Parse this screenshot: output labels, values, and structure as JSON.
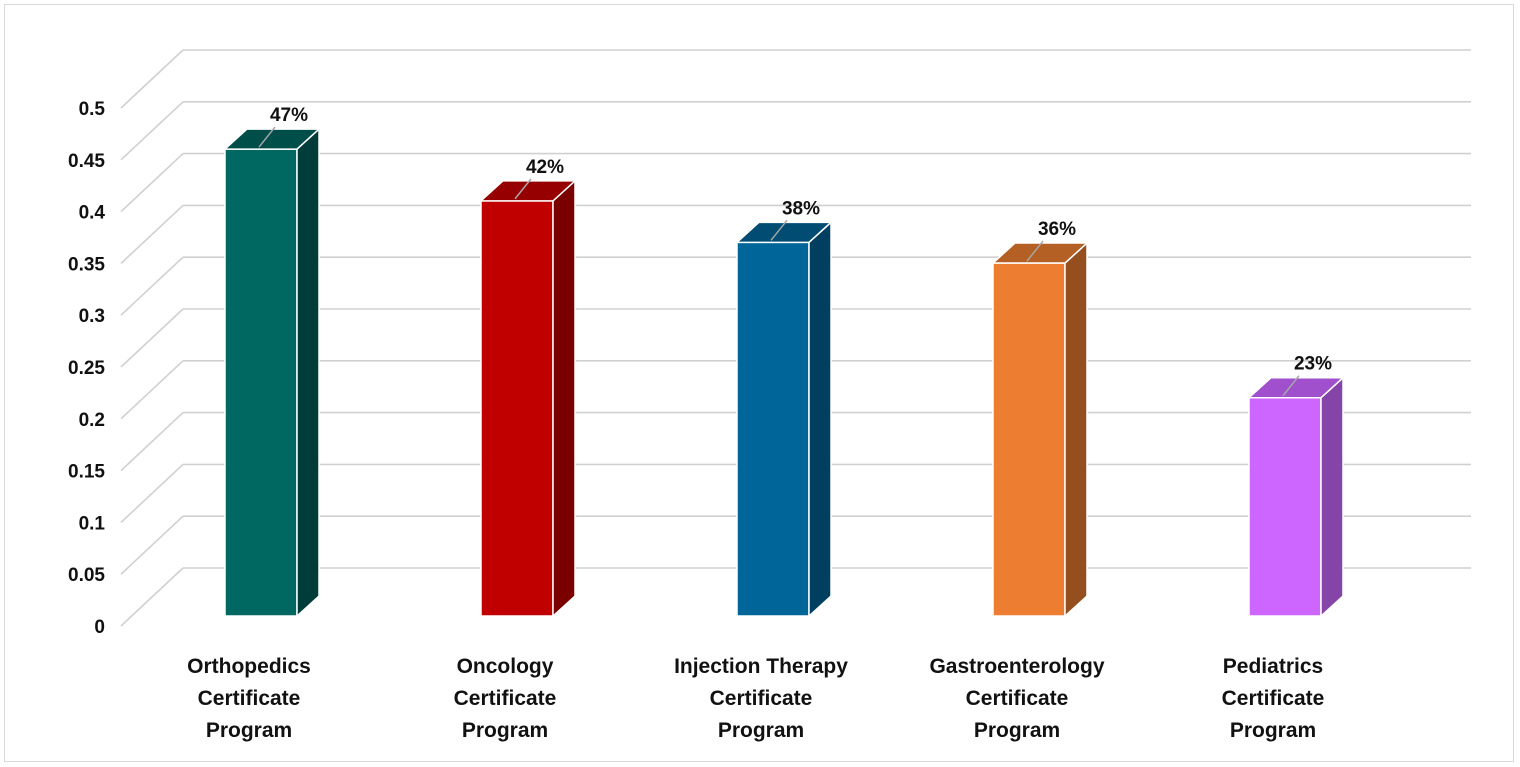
{
  "chart_data": {
    "type": "bar",
    "style": "3d-column",
    "categories": [
      [
        "Orthopedics",
        "Certificate",
        "Program"
      ],
      [
        "Oncology",
        "Certificate",
        "Program"
      ],
      [
        "Injection Therapy",
        "Certificate",
        "Program"
      ],
      [
        "Gastroenterology",
        "Certificate",
        "Program"
      ],
      [
        "Pediatrics",
        "Certificate",
        "Program"
      ]
    ],
    "values": [
      0.47,
      0.42,
      0.38,
      0.36,
      0.23
    ],
    "data_labels": [
      "47%",
      "42%",
      "38%",
      "36%",
      "23%"
    ],
    "colors": [
      {
        "front": "#006861",
        "side": "#003c3a",
        "top": "#004e4a"
      },
      {
        "front": "#c00000",
        "side": "#7a0000",
        "top": "#960000"
      },
      {
        "front": "#006699",
        "side": "#003f5f",
        "top": "#004c73"
      },
      {
        "front": "#ed7d31",
        "side": "#954f1f",
        "top": "#b45f24"
      },
      {
        "front": "#cc66ff",
        "side": "#8545a8",
        "top": "#a050cc"
      }
    ],
    "ylim": [
      0,
      0.5
    ],
    "yticks": [
      "0",
      "0.05",
      "0.1",
      "0.15",
      "0.2",
      "0.25",
      "0.3",
      "0.35",
      "0.4",
      "0.45",
      "0.5"
    ],
    "grid": true,
    "title": "",
    "xlabel": "",
    "ylabel": ""
  }
}
